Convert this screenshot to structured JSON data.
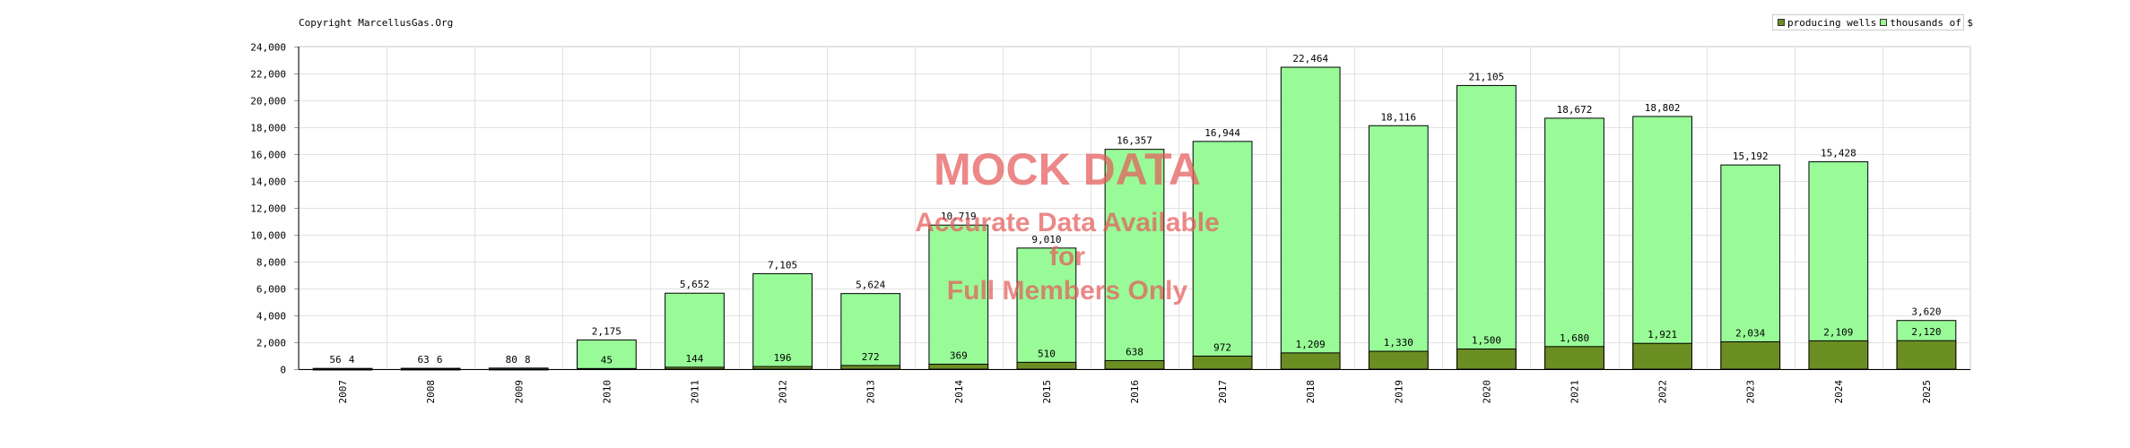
{
  "header": {
    "copyright": "Copyright MarcellusGas.Org"
  },
  "legend": [
    {
      "label": "producing wells",
      "color": "#6b8e23"
    },
    {
      "label": "thousands of $",
      "color": "#98fb98"
    }
  ],
  "watermark": {
    "title": "MOCK DATA",
    "line1": "Accurate Data Available",
    "line2": "for",
    "line3": "Full Members Only"
  },
  "chart_data": {
    "type": "bar",
    "categories": [
      "2007",
      "2008",
      "2009",
      "2010",
      "2011",
      "2012",
      "2013",
      "2014",
      "2015",
      "2016",
      "2017",
      "2018",
      "2019",
      "2020",
      "2021",
      "2022",
      "2023",
      "2024",
      "2025"
    ],
    "series": [
      {
        "name": "thousands of $",
        "color": "#98fb98",
        "values": [
          56,
          63,
          80,
          2175,
          5652,
          7105,
          5624,
          10719,
          9010,
          16357,
          16944,
          22464,
          18116,
          21105,
          18672,
          18802,
          15192,
          15428,
          3620
        ]
      },
      {
        "name": "producing wells",
        "color": "#6b8e23",
        "values": [
          4,
          6,
          8,
          45,
          144,
          196,
          272,
          369,
          510,
          638,
          972,
          1209,
          1330,
          1500,
          1680,
          1921,
          2034,
          2109,
          2120
        ]
      }
    ],
    "ylim": [
      0,
      24000
    ],
    "yticks": [
      0,
      2000,
      4000,
      6000,
      8000,
      10000,
      12000,
      14000,
      16000,
      18000,
      20000,
      22000,
      24000
    ],
    "grid": true,
    "legend_position": "top-right"
  }
}
